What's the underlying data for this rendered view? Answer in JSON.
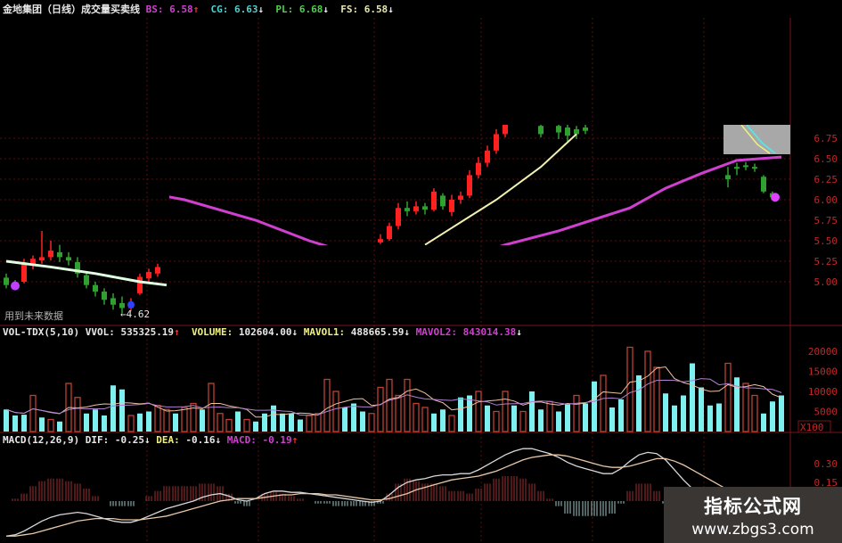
{
  "header": {
    "title": "金地集团（日线）成交量买卖线",
    "items": [
      {
        "label": "BS: ",
        "value": "6.58",
        "arrow": "↑",
        "color": "#d040d0"
      },
      {
        "label": "CG: ",
        "value": "6.63",
        "arrow": "↓",
        "color": "#50d0d0"
      },
      {
        "label": "PL: ",
        "value": "6.68",
        "arrow": "↓",
        "color": "#50d050"
      },
      {
        "label": "FS: ",
        "value": "6.58",
        "arrow": "↓",
        "color": "#e8e8b0"
      }
    ]
  },
  "volume_header": {
    "name": "VOL-TDX(5,10) VVOL: ",
    "vvol": "535325.19",
    "vvol_arrow": "↑",
    "volume_label": "VOLUME: ",
    "volume": "102604.00",
    "volume_arrow": "↓",
    "mavol1_label": "MAVOL1: ",
    "mavol1": "488665.59",
    "mavol1_arrow": "↓",
    "mavol2_label": "MAVOL2: ",
    "mavol2": "843014.38",
    "mavol2_arrow": "↓"
  },
  "macd_header": {
    "name": "MACD(12,26,9) DIF: ",
    "dif": "-0.25",
    "dif_arrow": "↓",
    "dea_label": "DEA: ",
    "dea": "-0.16",
    "dea_arrow": "↓",
    "macd_label": "MACD: ",
    "macd": "-0.19",
    "macd_arrow": "↑"
  },
  "future_data_note": "用到未来数据",
  "low_label": "←4.62",
  "colors": {
    "up": "#ff2020",
    "down": "#30a030",
    "ma_long": "#d040d0",
    "ma_short": "#f0f0b0",
    "vol_down": "#7ff0f0",
    "vol_up": "#c04030",
    "grid": "#5a0c0c",
    "axis_text": "#c02828"
  },
  "watermark": {
    "name": "指标公式网",
    "url": "www.zbgs3.com"
  },
  "chart_data": [
    {
      "type": "candlestick",
      "panel": "price",
      "y_ticks": [
        "6.75",
        "6.50",
        "6.25",
        "6.00",
        "5.75",
        "5.50",
        "5.25",
        "5.00"
      ],
      "candles": [
        {
          "i": 0,
          "ohlc": [
            5.05,
            4.96,
            5.1,
            4.92
          ]
        },
        {
          "i": 1,
          "ohlc": [
            4.98,
            4.94,
            5.02,
            4.9
          ]
        },
        {
          "i": 2,
          "ohlc": [
            5.0,
            5.22,
            5.28,
            4.98
          ]
        },
        {
          "i": 3,
          "ohlc": [
            5.2,
            5.28,
            5.32,
            5.15
          ]
        },
        {
          "i": 4,
          "ohlc": [
            5.26,
            5.3,
            5.62,
            5.22
          ]
        },
        {
          "i": 5,
          "ohlc": [
            5.3,
            5.38,
            5.5,
            5.26
          ]
        },
        {
          "i": 6,
          "ohlc": [
            5.36,
            5.3,
            5.45,
            5.24
          ]
        },
        {
          "i": 7,
          "ohlc": [
            5.3,
            5.26,
            5.36,
            5.2
          ]
        },
        {
          "i": 8,
          "ohlc": [
            5.24,
            5.1,
            5.3,
            5.05
          ]
        },
        {
          "i": 9,
          "ohlc": [
            5.08,
            4.96,
            5.12,
            4.92
          ]
        },
        {
          "i": 10,
          "ohlc": [
            4.96,
            4.88,
            5.0,
            4.82
          ]
        },
        {
          "i": 11,
          "ohlc": [
            4.88,
            4.78,
            4.92,
            4.72
          ]
        },
        {
          "i": 12,
          "ohlc": [
            4.8,
            4.72,
            4.86,
            4.66
          ]
        },
        {
          "i": 13,
          "ohlc": [
            4.74,
            4.68,
            4.82,
            4.62
          ]
        },
        {
          "i": 14,
          "ohlc": [
            4.68,
            4.75,
            4.8,
            4.64
          ]
        },
        {
          "i": 15,
          "ohlc": [
            4.86,
            5.06,
            5.1,
            4.84
          ]
        },
        {
          "i": 16,
          "ohlc": [
            5.04,
            5.12,
            5.16,
            5.0
          ]
        },
        {
          "i": 17,
          "ohlc": [
            5.1,
            5.18,
            5.22,
            5.06
          ]
        },
        {
          "i": 42,
          "ohlc": [
            5.48,
            5.52,
            5.58,
            5.46
          ]
        },
        {
          "i": 43,
          "ohlc": [
            5.52,
            5.68,
            5.72,
            5.5
          ]
        },
        {
          "i": 44,
          "ohlc": [
            5.68,
            5.9,
            5.96,
            5.64
          ]
        },
        {
          "i": 45,
          "ohlc": [
            5.9,
            5.86,
            5.98,
            5.8
          ]
        },
        {
          "i": 46,
          "ohlc": [
            5.86,
            5.92,
            5.98,
            5.82
          ]
        },
        {
          "i": 47,
          "ohlc": [
            5.92,
            5.88,
            5.96,
            5.82
          ]
        },
        {
          "i": 48,
          "ohlc": [
            5.88,
            6.1,
            6.14,
            5.86
          ]
        },
        {
          "i": 49,
          "ohlc": [
            6.05,
            5.92,
            6.08,
            5.88
          ]
        },
        {
          "i": 50,
          "ohlc": [
            5.85,
            6.0,
            6.06,
            5.8
          ]
        },
        {
          "i": 51,
          "ohlc": [
            6.0,
            6.05,
            6.1,
            5.95
          ]
        },
        {
          "i": 52,
          "ohlc": [
            6.05,
            6.3,
            6.36,
            6.02
          ]
        },
        {
          "i": 53,
          "ohlc": [
            6.3,
            6.45,
            6.52,
            6.26
          ]
        },
        {
          "i": 54,
          "ohlc": [
            6.45,
            6.6,
            6.66,
            6.4
          ]
        },
        {
          "i": 55,
          "ohlc": [
            6.6,
            6.8,
            6.86,
            6.56
          ]
        },
        {
          "i": 56,
          "ohlc": [
            6.8,
            6.95,
            7.0,
            6.76
          ]
        },
        {
          "i": 60,
          "ohlc": [
            6.9,
            6.8,
            6.95,
            6.76
          ]
        },
        {
          "i": 62,
          "ohlc": [
            6.9,
            6.82,
            6.92,
            6.74
          ]
        },
        {
          "i": 63,
          "ohlc": [
            6.88,
            6.78,
            6.92,
            6.7
          ]
        },
        {
          "i": 64,
          "ohlc": [
            6.86,
            6.8,
            6.9,
            6.74
          ]
        },
        {
          "i": 65,
          "ohlc": [
            6.88,
            6.84,
            6.92,
            6.8
          ]
        },
        {
          "i": 81,
          "ohlc": [
            6.3,
            6.25,
            6.4,
            6.15
          ]
        },
        {
          "i": 82,
          "ohlc": [
            6.4,
            6.38,
            6.45,
            6.3
          ]
        },
        {
          "i": 83,
          "ohlc": [
            6.42,
            6.4,
            6.46,
            6.36
          ]
        },
        {
          "i": 84,
          "ohlc": [
            6.4,
            6.38,
            6.44,
            6.34
          ]
        },
        {
          "i": 85,
          "ohlc": [
            6.28,
            6.1,
            6.3,
            6.08
          ]
        },
        {
          "i": 86,
          "ohlc": [
            6.08,
            6.03,
            6.1,
            6.0
          ]
        }
      ],
      "ma_long": [
        [
          0,
          6.31
        ],
        [
          10,
          6.2
        ],
        [
          20,
          6.0
        ],
        [
          28,
          5.75
        ],
        [
          34,
          5.5
        ],
        [
          40,
          5.3
        ],
        [
          50,
          5.25
        ],
        [
          56,
          5.45
        ],
        [
          62,
          5.62
        ],
        [
          70,
          5.9
        ],
        [
          74,
          6.14
        ],
        [
          78,
          6.32
        ],
        [
          82,
          6.48
        ],
        [
          87,
          6.52
        ]
      ],
      "ma_short": [
        [
          47,
          5.45
        ],
        [
          55,
          6.0
        ],
        [
          60,
          6.4
        ],
        [
          64,
          6.8
        ]
      ],
      "ma_left": [
        [
          0,
          5.25
        ],
        [
          5,
          5.18
        ],
        [
          10,
          5.1
        ],
        [
          15,
          5.0
        ],
        [
          18,
          4.96
        ]
      ]
    },
    {
      "type": "bar",
      "panel": "volume",
      "unit": "X100",
      "y_ticks": [
        "20000",
        "15000",
        "10000",
        "5000"
      ],
      "ylim": [
        0,
        24000
      ],
      "values": [
        5500,
        4000,
        4200,
        9000,
        3500,
        3000,
        2500,
        12000,
        8500,
        4500,
        5500,
        4000,
        11500,
        10500,
        4000,
        4500,
        5000,
        6500,
        5500,
        4500,
        6000,
        7000,
        5500,
        12000,
        4500,
        3000,
        5000,
        3000,
        2500,
        4500,
        6500,
        4500,
        4500,
        3000,
        4000,
        4500,
        13000,
        10000,
        6000,
        7000,
        5000,
        4500,
        11000,
        13000,
        9000,
        13000,
        7000,
        6000,
        4500,
        5500,
        4000,
        8500,
        9000,
        10000,
        6500,
        5000,
        10000,
        6500,
        5000,
        10000,
        5500,
        7500,
        5000,
        7000,
        9000,
        7000,
        12500,
        14000,
        6000,
        8000,
        21000,
        14000,
        20000,
        16000,
        9500,
        6500,
        9000,
        17000,
        11000,
        6500,
        7000,
        17000,
        13500,
        12000,
        9000,
        4500,
        7500,
        9000
      ],
      "up": [
        0,
        0,
        0,
        1,
        0,
        1,
        0,
        1,
        1,
        0,
        0,
        0,
        0,
        0,
        1,
        0,
        0,
        1,
        1,
        0,
        1,
        1,
        0,
        1,
        1,
        1,
        0,
        1,
        0,
        0,
        0,
        0,
        0,
        0,
        1,
        1,
        1,
        1,
        0,
        0,
        0,
        1,
        1,
        1,
        1,
        1,
        1,
        1,
        0,
        0,
        1,
        0,
        0,
        1,
        0,
        1,
        1,
        0,
        1,
        0,
        0,
        1,
        0,
        0,
        1,
        0,
        0,
        1,
        0,
        0,
        1,
        0,
        1,
        1,
        0,
        0,
        0,
        0,
        0,
        0,
        0,
        1,
        0,
        1,
        1,
        0,
        0,
        0
      ]
    },
    {
      "type": "line",
      "panel": "macd",
      "y_ticks": [
        "0.30",
        "0.15"
      ],
      "dif": [
        -0.28,
        -0.27,
        -0.24,
        -0.2,
        -0.16,
        -0.13,
        -0.11,
        -0.1,
        -0.09,
        -0.1,
        -0.12,
        -0.14,
        -0.16,
        -0.17,
        -0.17,
        -0.15,
        -0.12,
        -0.09,
        -0.06,
        -0.04,
        -0.02,
        0.0,
        0.03,
        0.05,
        0.06,
        0.04,
        0.01,
        0.0,
        0.02,
        0.06,
        0.08,
        0.08,
        0.07,
        0.07,
        0.06,
        0.05,
        0.04,
        0.03,
        0.02,
        0.01,
        0.0,
        -0.01,
        0.0,
        0.05,
        0.11,
        0.15,
        0.17,
        0.18,
        0.2,
        0.21,
        0.21,
        0.22,
        0.22,
        0.25,
        0.29,
        0.33,
        0.37,
        0.4,
        0.42,
        0.42,
        0.4,
        0.38,
        0.35,
        0.31,
        0.28,
        0.26,
        0.24,
        0.22,
        0.22,
        0.26,
        0.32,
        0.37,
        0.39,
        0.38,
        0.33,
        0.25,
        0.17,
        0.1,
        0.04,
        -0.01,
        -0.05,
        -0.08,
        -0.11,
        -0.14,
        -0.17,
        -0.2,
        -0.23,
        -0.25
      ],
      "dea": [
        -0.28,
        -0.28,
        -0.27,
        -0.26,
        -0.24,
        -0.22,
        -0.2,
        -0.18,
        -0.16,
        -0.15,
        -0.14,
        -0.14,
        -0.14,
        -0.15,
        -0.15,
        -0.15,
        -0.14,
        -0.13,
        -0.12,
        -0.1,
        -0.08,
        -0.06,
        -0.04,
        -0.02,
        0.0,
        0.01,
        0.02,
        0.02,
        0.02,
        0.03,
        0.04,
        0.05,
        0.05,
        0.06,
        0.06,
        0.06,
        0.05,
        0.05,
        0.04,
        0.03,
        0.02,
        0.01,
        0.01,
        0.02,
        0.04,
        0.06,
        0.09,
        0.11,
        0.13,
        0.15,
        0.17,
        0.18,
        0.19,
        0.2,
        0.22,
        0.24,
        0.27,
        0.3,
        0.33,
        0.35,
        0.36,
        0.37,
        0.37,
        0.36,
        0.34,
        0.32,
        0.3,
        0.28,
        0.27,
        0.27,
        0.28,
        0.3,
        0.32,
        0.34,
        0.34,
        0.32,
        0.29,
        0.25,
        0.21,
        0.17,
        0.13,
        0.09,
        0.05,
        0.01,
        -0.04,
        -0.08,
        -0.12,
        -0.16
      ]
    }
  ]
}
